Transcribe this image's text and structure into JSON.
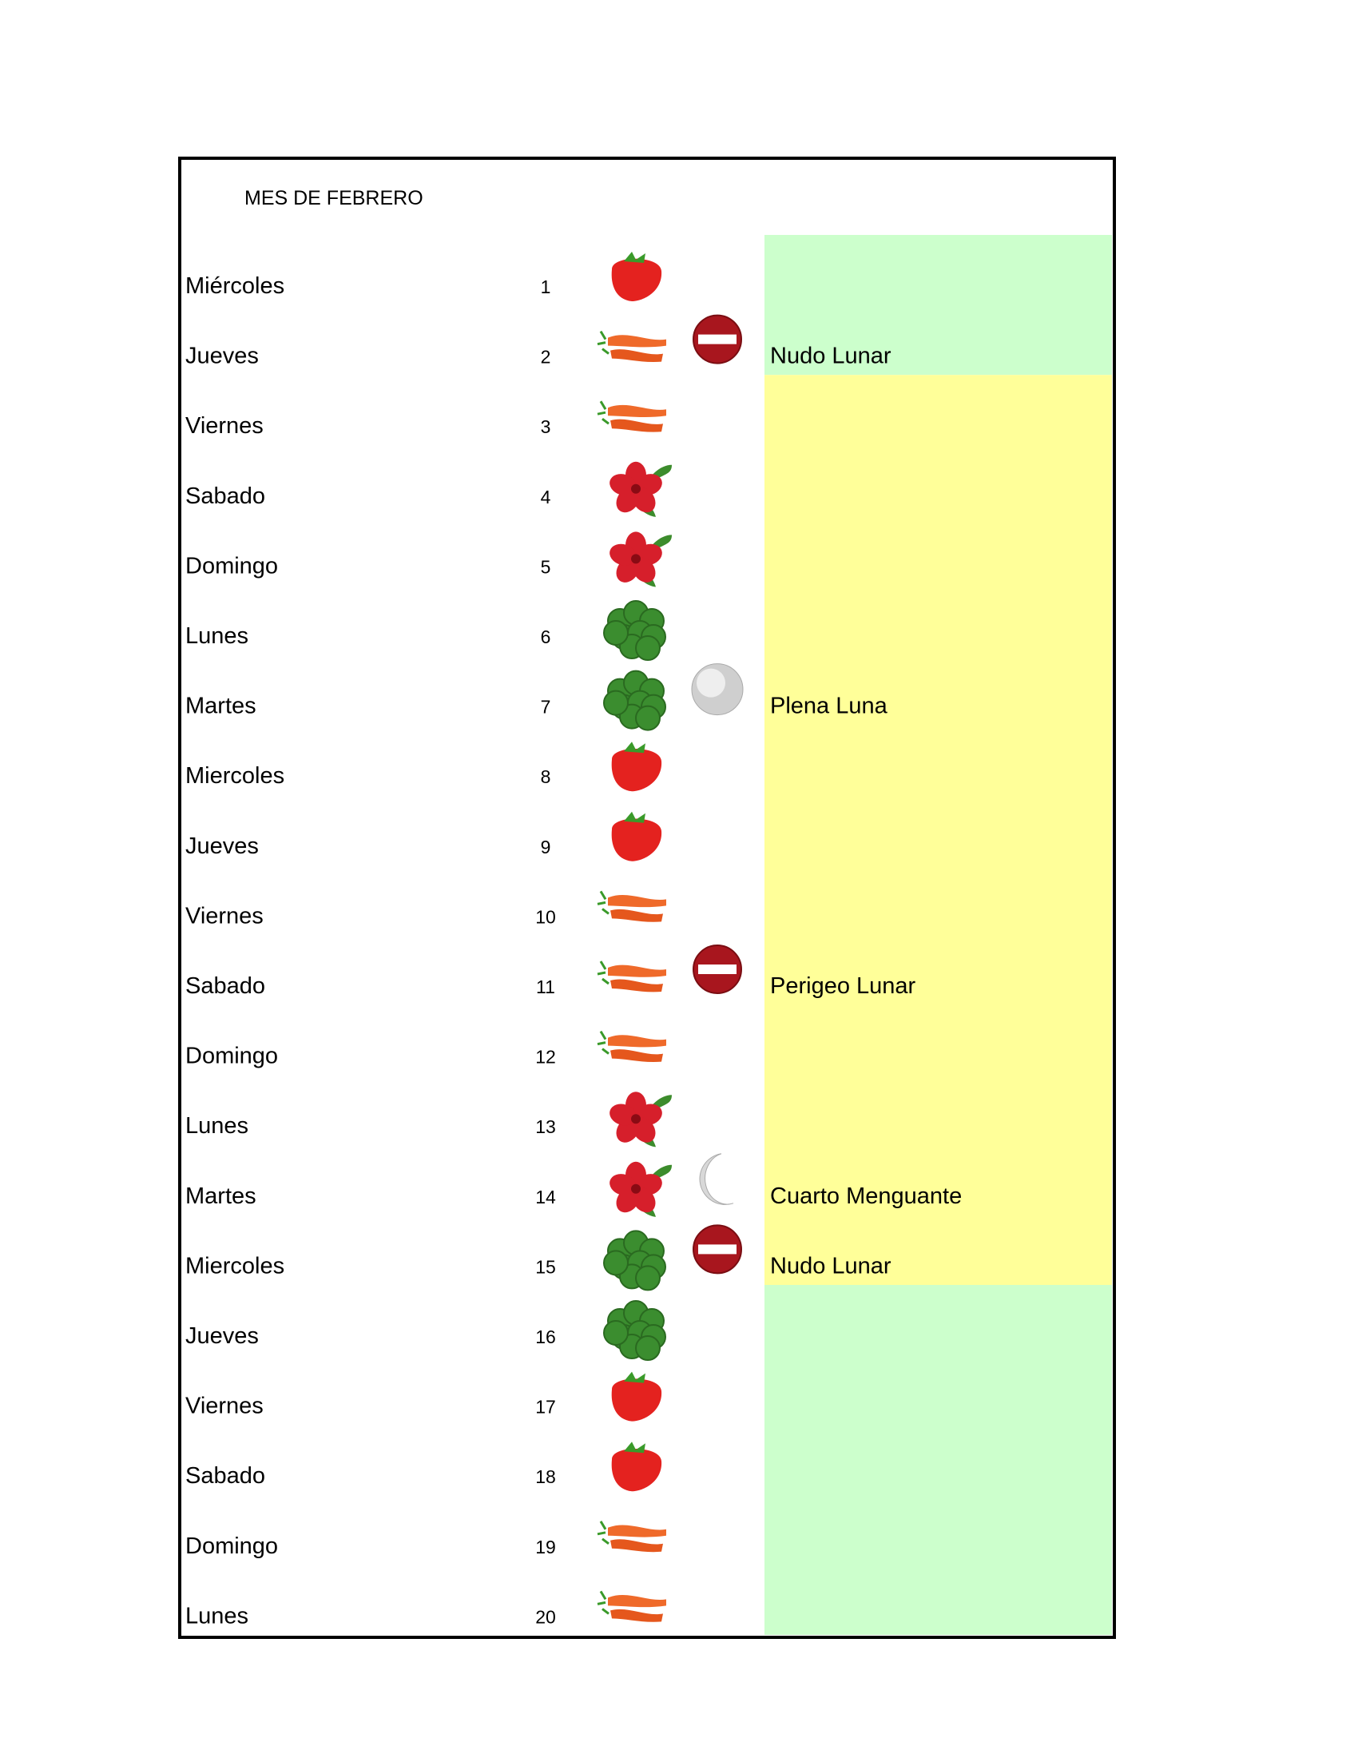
{
  "title": "MES  DE  FEBRERO",
  "rows": [
    {
      "day": "Miércoles",
      "number": 1
    },
    {
      "day": "Jueves",
      "number": 2,
      "note": "Nudo Lunar"
    },
    {
      "day": "Viernes",
      "number": 3
    },
    {
      "day": "Sabado",
      "number": 4
    },
    {
      "day": "Domingo",
      "number": 5
    },
    {
      "day": "Lunes",
      "number": 6
    },
    {
      "day": "Martes",
      "number": 7,
      "note": "Plena Luna"
    },
    {
      "day": "Miercoles",
      "number": 8
    },
    {
      "day": "Jueves",
      "number": 9
    },
    {
      "day": "Viernes",
      "number": 10
    },
    {
      "day": "Sabado",
      "number": 11,
      "note": "Perigeo Lunar"
    },
    {
      "day": "Domingo",
      "number": 12
    },
    {
      "day": "Lunes",
      "number": 13
    },
    {
      "day": "Martes",
      "number": 14,
      "note": "Cuarto Menguante"
    },
    {
      "day": "Miercoles",
      "number": 15,
      "note": "Nudo Lunar"
    },
    {
      "day": "Jueves",
      "number": 16
    },
    {
      "day": "Viernes",
      "number": 17
    },
    {
      "day": "Sabado",
      "number": 18
    },
    {
      "day": "Domingo",
      "number": 19
    },
    {
      "day": "Lunes",
      "number": 20
    }
  ]
}
